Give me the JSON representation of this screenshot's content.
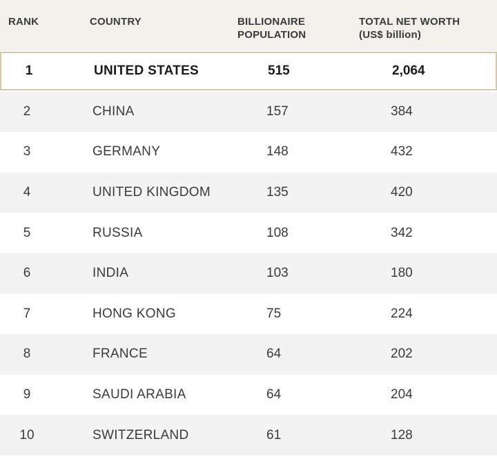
{
  "chart_data": {
    "type": "table",
    "columns": [
      "RANK",
      "COUNTRY",
      "BILLIONAIRE\nPOPULATION",
      "TOTAL NET WORTH\n(US$ billion)"
    ],
    "rows": [
      {
        "rank": "1",
        "country": "UNITED STATES",
        "population": "515",
        "net_worth": "2,064"
      },
      {
        "rank": "2",
        "country": "CHINA",
        "population": "157",
        "net_worth": "384"
      },
      {
        "rank": "3",
        "country": "GERMANY",
        "population": "148",
        "net_worth": "432"
      },
      {
        "rank": "4",
        "country": "UNITED KINGDOM",
        "population": "135",
        "net_worth": "420"
      },
      {
        "rank": "5",
        "country": "RUSSIA",
        "population": "108",
        "net_worth": "342"
      },
      {
        "rank": "6",
        "country": "INDIA",
        "population": "103",
        "net_worth": "180"
      },
      {
        "rank": "7",
        "country": "HONG KONG",
        "population": "75",
        "net_worth": "224"
      },
      {
        "rank": "8",
        "country": "FRANCE",
        "population": "64",
        "net_worth": "202"
      },
      {
        "rank": "9",
        "country": "SAUDI ARABIA",
        "population": "64",
        "net_worth": "204"
      },
      {
        "rank": "10",
        "country": "SWITZERLAND",
        "population": "61",
        "net_worth": "128"
      }
    ]
  },
  "colors": {
    "header_bg": "#f3f0ec",
    "alt_row_bg": "#f3f3f3",
    "highlight_border": "#d8c7a4",
    "text": "#3a3a3a"
  }
}
